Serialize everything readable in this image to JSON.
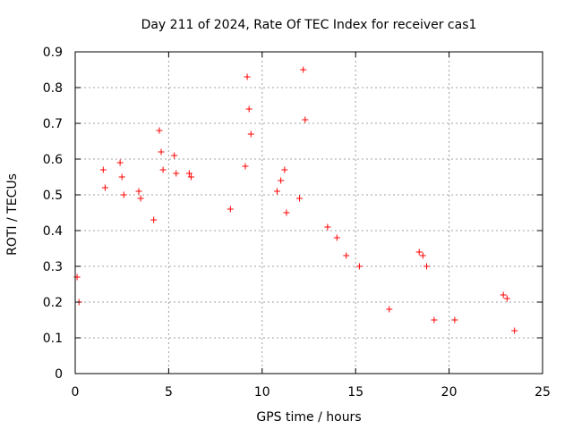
{
  "chart_data": {
    "type": "scatter",
    "title": "Day 211 of 2024, Rate Of TEC Index for receiver cas1",
    "xlabel": "GPS time / hours",
    "ylabel": "ROTI / TECUs",
    "xlim": [
      0,
      25
    ],
    "ylim": [
      0,
      0.9
    ],
    "xticks": [
      0,
      5,
      10,
      15,
      20,
      25
    ],
    "yticks": [
      0,
      0.1,
      0.2,
      0.3,
      0.4,
      0.5,
      0.6,
      0.7,
      0.8,
      0.9
    ],
    "xtick_labels": [
      "0",
      "5",
      "10",
      "15",
      "20",
      "25"
    ],
    "ytick_labels": [
      "0",
      "0.1",
      "0.2",
      "0.3",
      "0.4",
      "0.5",
      "0.6",
      "0.7",
      "0.8",
      "0.9"
    ],
    "grid": true,
    "marker": "+",
    "color": "#ff0000",
    "series": [
      {
        "name": "cas1",
        "x": [
          0.1,
          0.2,
          1.5,
          1.6,
          2.4,
          2.5,
          2.6,
          3.4,
          3.5,
          4.2,
          4.5,
          4.6,
          4.7,
          5.3,
          5.4,
          6.1,
          6.2,
          8.3,
          9.1,
          9.2,
          9.3,
          9.4,
          10.8,
          11.0,
          11.2,
          11.3,
          12.0,
          12.2,
          12.3,
          13.5,
          14.0,
          14.5,
          15.2,
          16.8,
          18.4,
          18.6,
          18.8,
          19.2,
          20.3,
          22.9,
          23.1,
          23.5
        ],
        "y": [
          0.27,
          0.2,
          0.57,
          0.52,
          0.59,
          0.55,
          0.5,
          0.51,
          0.49,
          0.43,
          0.68,
          0.62,
          0.57,
          0.61,
          0.56,
          0.56,
          0.55,
          0.46,
          0.58,
          0.83,
          0.74,
          0.67,
          0.51,
          0.54,
          0.57,
          0.45,
          0.49,
          0.85,
          0.71,
          0.41,
          0.38,
          0.33,
          0.3,
          0.18,
          0.34,
          0.33,
          0.3,
          0.15,
          0.15,
          0.22,
          0.21,
          0.12
        ]
      }
    ]
  }
}
